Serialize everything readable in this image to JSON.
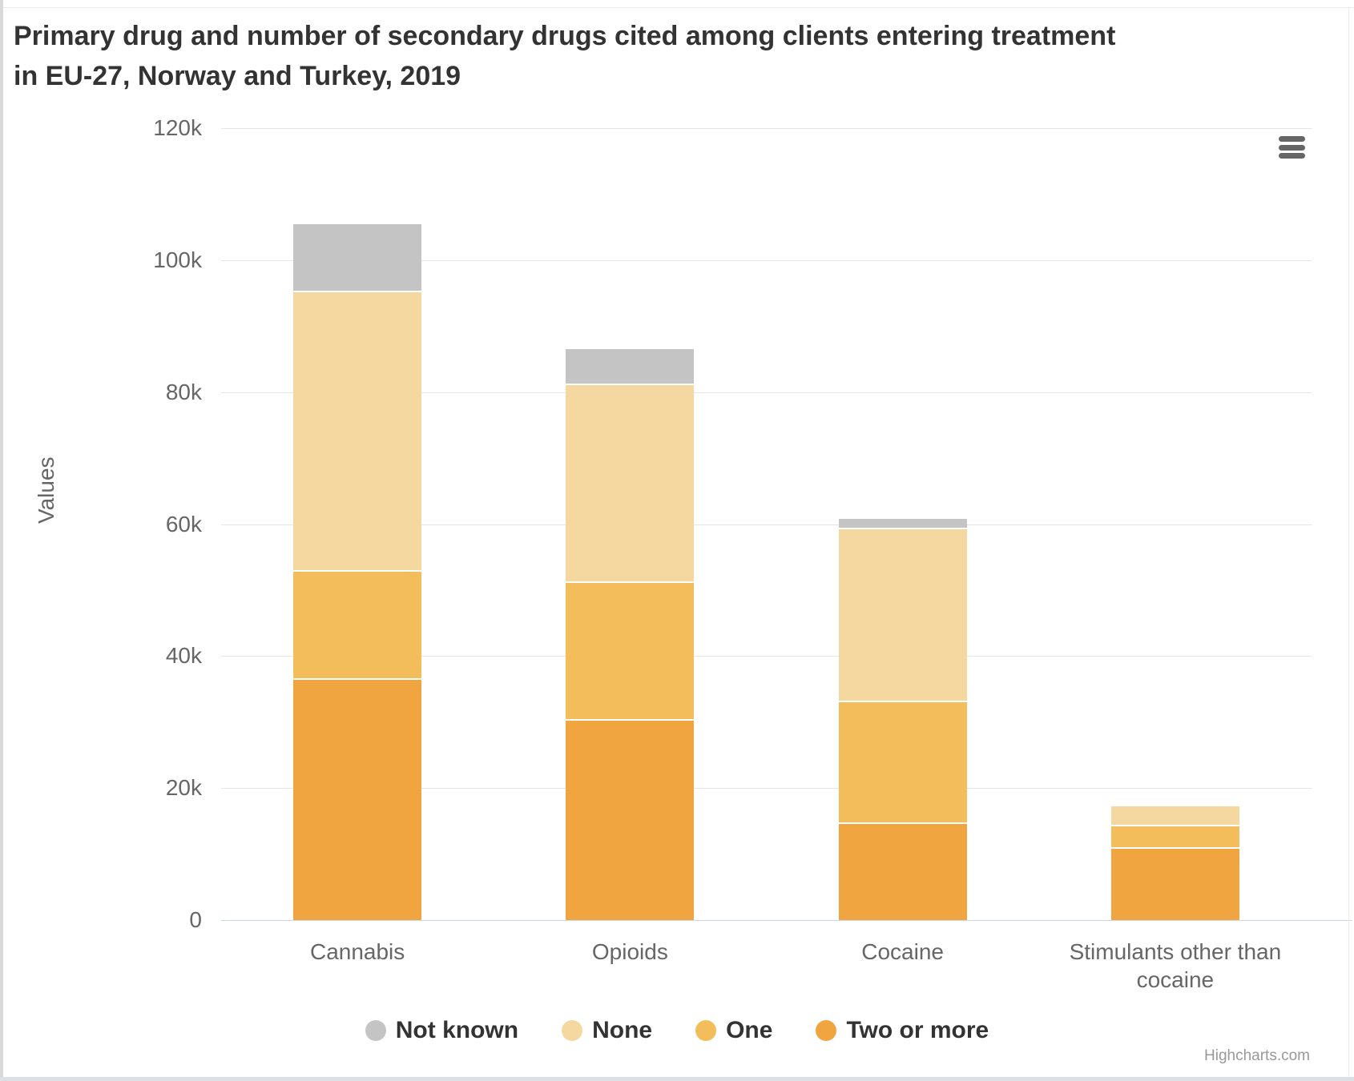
{
  "header": {
    "title_line1": "Primary drug and number of secondary drugs cited among clients entering treatment",
    "title_line2": "in EU-27, Norway and Turkey, 2019"
  },
  "toolbar": {
    "context_menu_icon": "hamburger-menu-icon"
  },
  "credits": "Highcharts.com",
  "chart_data": {
    "type": "bar",
    "stacked": true,
    "orientation": "vertical",
    "title": "Primary drug and number of secondary drugs cited among clients entering treatment in EU-27, Norway and Turkey, 2019",
    "categories": [
      "Cannabis",
      "Opioids",
      "Cocaine",
      "Stimulants other than cocaine"
    ],
    "series": [
      {
        "name": "Two or more",
        "color": "#F0A540",
        "values": [
          36600,
          30500,
          14800,
          11000
        ]
      },
      {
        "name": "One",
        "color": "#F3BD5B",
        "values": [
          16400,
          20800,
          18500,
          3400
        ]
      },
      {
        "name": "None",
        "color": "#F5D8A0",
        "values": [
          42400,
          30000,
          26100,
          3100
        ]
      },
      {
        "name": "Not known",
        "color": "#C4C4C4",
        "values": [
          10300,
          5400,
          1600,
          0
        ]
      }
    ],
    "stack_totals": [
      105700,
      86700,
      61000,
      17500
    ],
    "legend_order": [
      "Not known",
      "None",
      "One",
      "Two or more"
    ],
    "legend_position": "bottom",
    "xlabel": "",
    "ylabel": "Values",
    "ylim": [
      0,
      120000
    ],
    "yticks": {
      "values": [
        0,
        20000,
        40000,
        60000,
        80000,
        100000,
        120000
      ],
      "labels": [
        "0",
        "20k",
        "40k",
        "60k",
        "80k",
        "100k",
        "120k"
      ]
    },
    "grid": true,
    "grid_color": "#e6e6e6",
    "axis_line_color": "#ccd6eb",
    "label_color": "#666666",
    "title_color": "#333333"
  }
}
